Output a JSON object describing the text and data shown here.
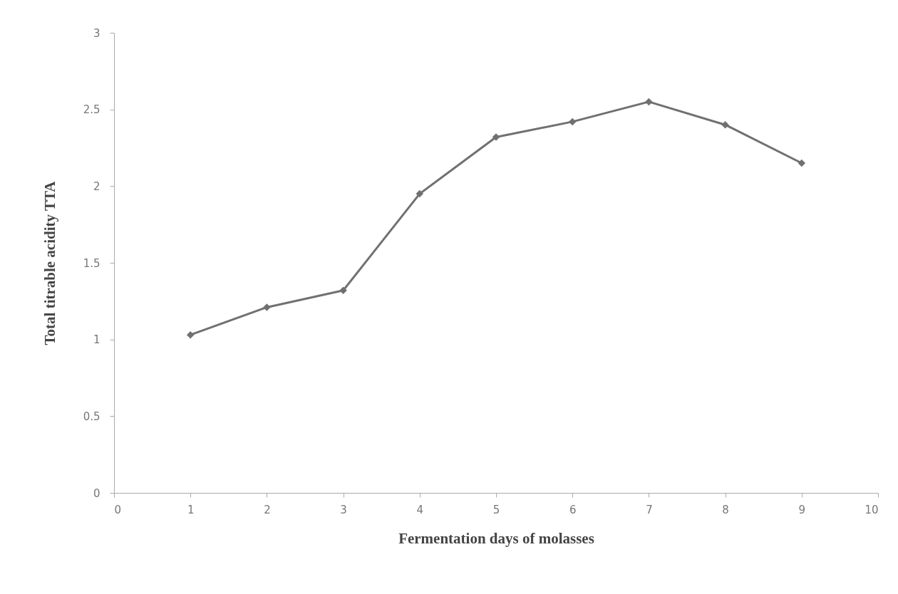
{
  "chart_data": {
    "type": "line",
    "xlabel": "Fermentation days of molasses",
    "ylabel": "Total titrable acidity TTA",
    "x": [
      1,
      2,
      3,
      4,
      5,
      6,
      7,
      8,
      9
    ],
    "series": [
      {
        "color": "#707070",
        "values": [
          1.03,
          1.21,
          1.32,
          1.95,
          2.32,
          2.42,
          2.55,
          2.4,
          2.15
        ]
      }
    ],
    "xlim": [
      0,
      10
    ],
    "xticks": [
      0,
      1,
      2,
      3,
      4,
      5,
      6,
      7,
      8,
      9,
      10
    ],
    "ylim": [
      0,
      3
    ],
    "yticks": [
      0,
      0.5,
      1,
      1.5,
      2,
      2.5,
      3
    ],
    "grid": false,
    "legend": false,
    "marker": "diamond",
    "line_style": "solid"
  }
}
